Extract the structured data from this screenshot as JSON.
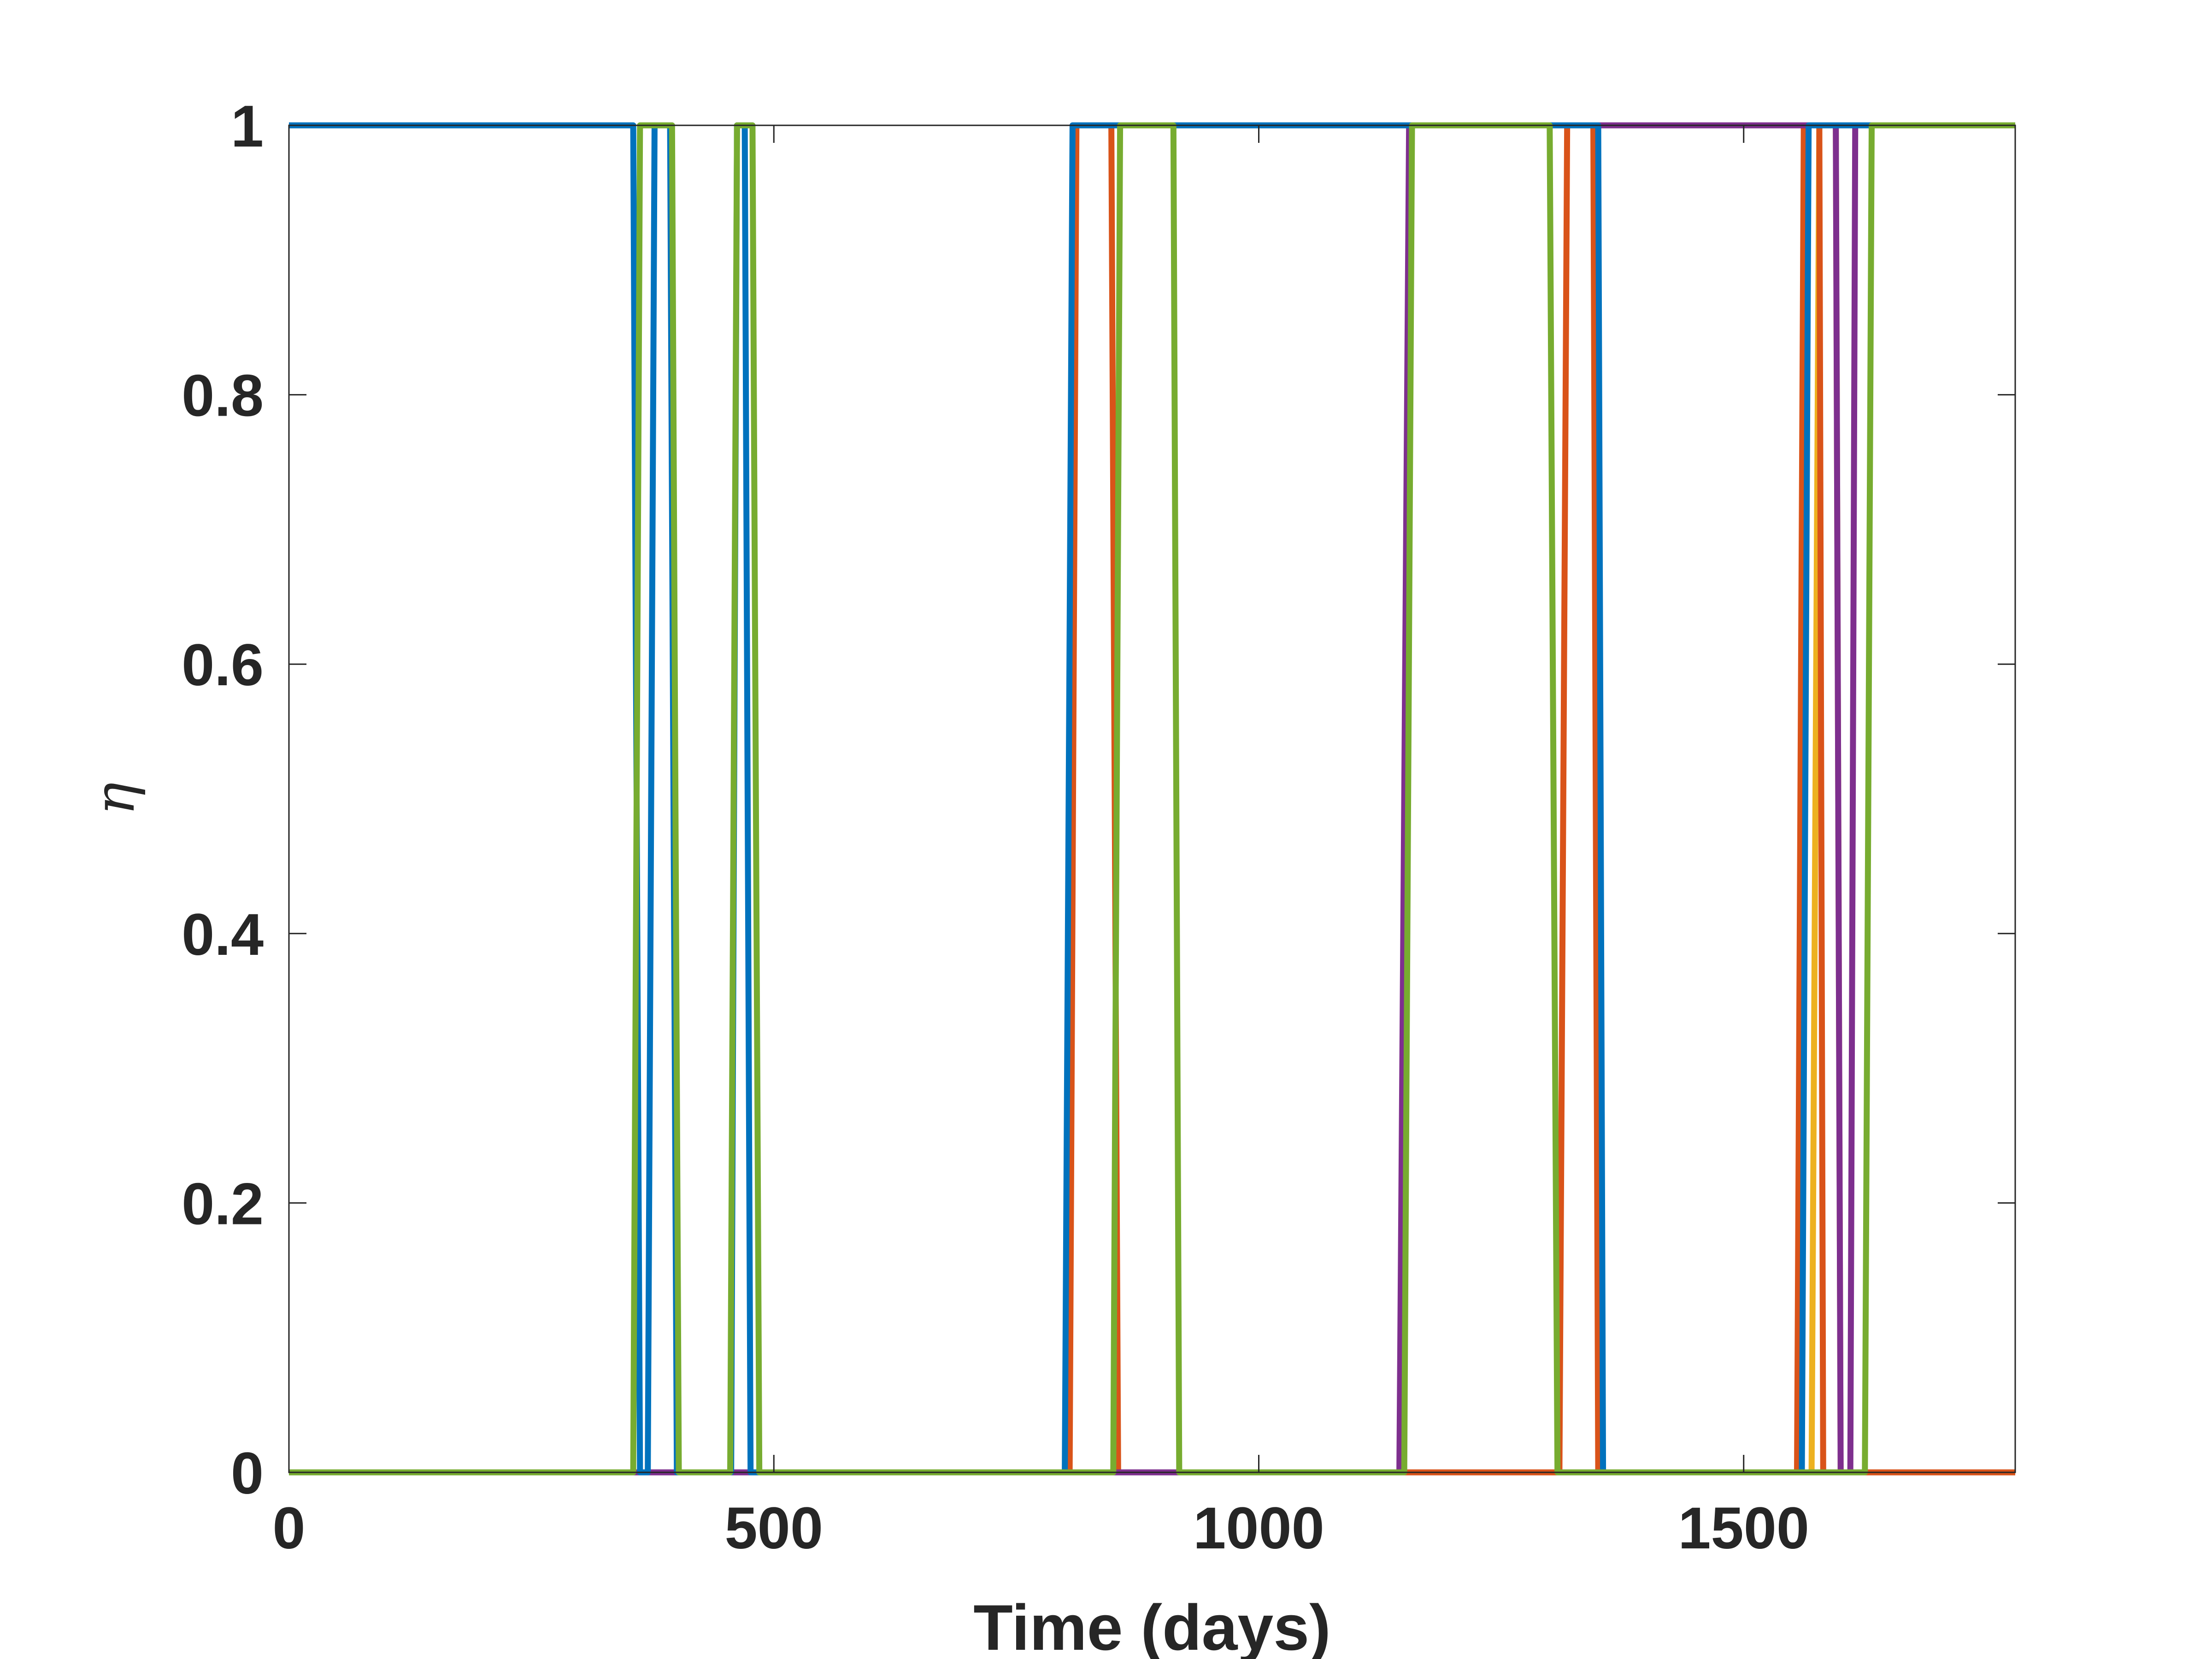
{
  "chart_data": {
    "type": "line",
    "xlabel": "Time (days)",
    "ylabel": "η",
    "xlim": [
      0,
      1780
    ],
    "ylim": [
      0,
      1
    ],
    "x_ticks": [
      0,
      500,
      1000,
      1500
    ],
    "y_ticks": [
      0,
      0.2,
      0.4,
      0.6,
      0.8,
      1
    ],
    "x_tick_labels": [
      "0",
      "500",
      "1000",
      "1500"
    ],
    "y_tick_labels": [
      "0",
      "0.2",
      "0.4",
      "0.6",
      "0.8",
      "1"
    ],
    "grid": false,
    "colors": {
      "blue": "#0072BD",
      "orange": "#D95319",
      "yellow": "#EDB120",
      "purple": "#7E2F8E",
      "green": "#77AC30"
    },
    "series": [
      {
        "color": "#EDB120",
        "x": [
          0,
          1570,
          1578,
          1595,
          1600,
          1780
        ],
        "y": [
          0,
          0,
          1,
          1,
          0,
          0
        ]
      },
      {
        "color": "#D95319",
        "x": [
          0,
          805,
          812,
          848,
          855,
          1310,
          1318,
          1345,
          1350,
          1555,
          1562,
          1578,
          1582,
          1780
        ],
        "y": [
          0,
          0,
          1,
          1,
          0,
          0,
          1,
          1,
          0,
          0,
          1,
          1,
          0,
          0
        ]
      },
      {
        "color": "#7E2F8E",
        "x": [
          0,
          1145,
          1155,
          1595,
          1600,
          1610,
          1615,
          1780
        ],
        "y": [
          0,
          0,
          1,
          1,
          0,
          0,
          1,
          1
        ]
      },
      {
        "color": "#0072BD",
        "x": [
          0,
          355,
          362,
          370,
          377,
          393,
          400,
          456,
          462,
          470,
          476,
          800,
          808,
          1350,
          1355,
          1560,
          1567,
          1780
        ],
        "y": [
          1,
          1,
          0,
          0,
          1,
          1,
          0,
          0,
          1,
          1,
          0,
          0,
          1,
          1,
          0,
          0,
          1,
          1
        ]
      },
      {
        "color": "#77AC30",
        "x": [
          0,
          355,
          362,
          395,
          402,
          455,
          462,
          478,
          485,
          850,
          857,
          912,
          918,
          1150,
          1158,
          1300,
          1308,
          1625,
          1632,
          1780
        ],
        "y": [
          0,
          0,
          1,
          1,
          0,
          0,
          1,
          1,
          0,
          0,
          1,
          1,
          0,
          0,
          1,
          1,
          0,
          0,
          1,
          1
        ]
      }
    ]
  }
}
